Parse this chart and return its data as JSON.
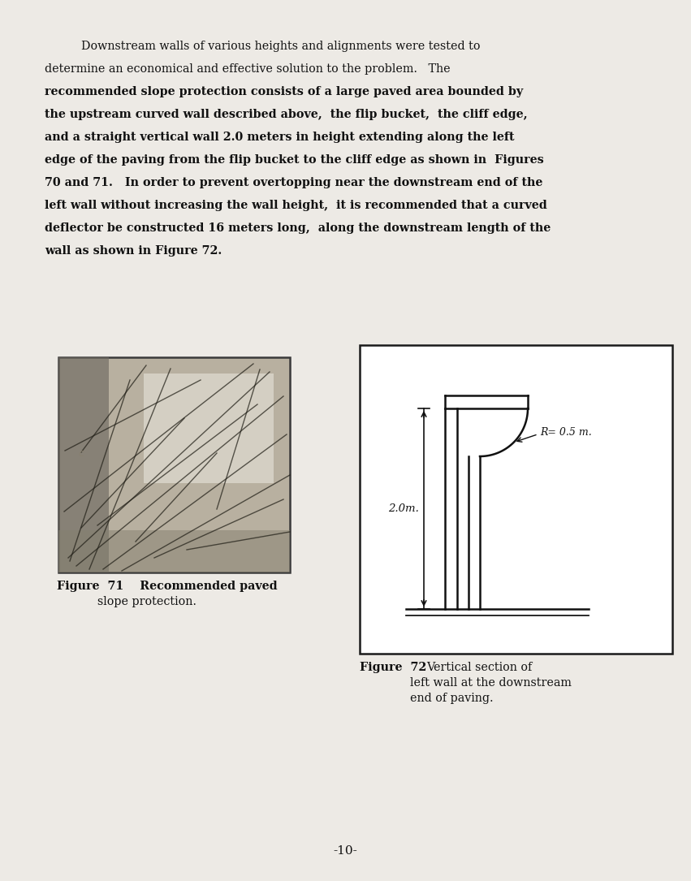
{
  "bg_color": "#edeae5",
  "page_bg": "#edeae5",
  "text_color": "#111111",
  "fig71_caption_line1": "Figure  71    Recommended paved",
  "fig71_caption_line2": "slope protection.",
  "fig72_caption_line1": "Figure  72",
  "fig72_caption_line2": "Vertical section of",
  "fig72_caption_line3": "left wall at the downstream",
  "fig72_caption_line4": "end of paving.",
  "page_number": "-10-",
  "para_lines": [
    "          Downstream walls of various heights and alignments were tested to",
    "determine an economical and effective solution to the problem.   The",
    "recommended slope protection consists of a large paved area bounded by",
    "the upstream curved wall described above,  the flip bucket,  the cliff edge,",
    "and a straight vertical wall 2.0 meters in height extending along the left",
    "edge of the paving from the flip bucket to the cliff edge as shown in  Figures",
    "70 and 71.   In order to prevent overtopping near the downstream end of the",
    "left wall without increasing the wall height,  it is recommended that a curved",
    "deflector be constructed 16 meters long,  along the downstream length of the",
    "wall as shown in Figure 72."
  ],
  "para_bold": [
    false,
    false,
    true,
    true,
    true,
    true,
    true,
    true,
    true,
    true
  ],
  "wall_color": "#111111",
  "diagram_box_color": "#1a1a1a"
}
